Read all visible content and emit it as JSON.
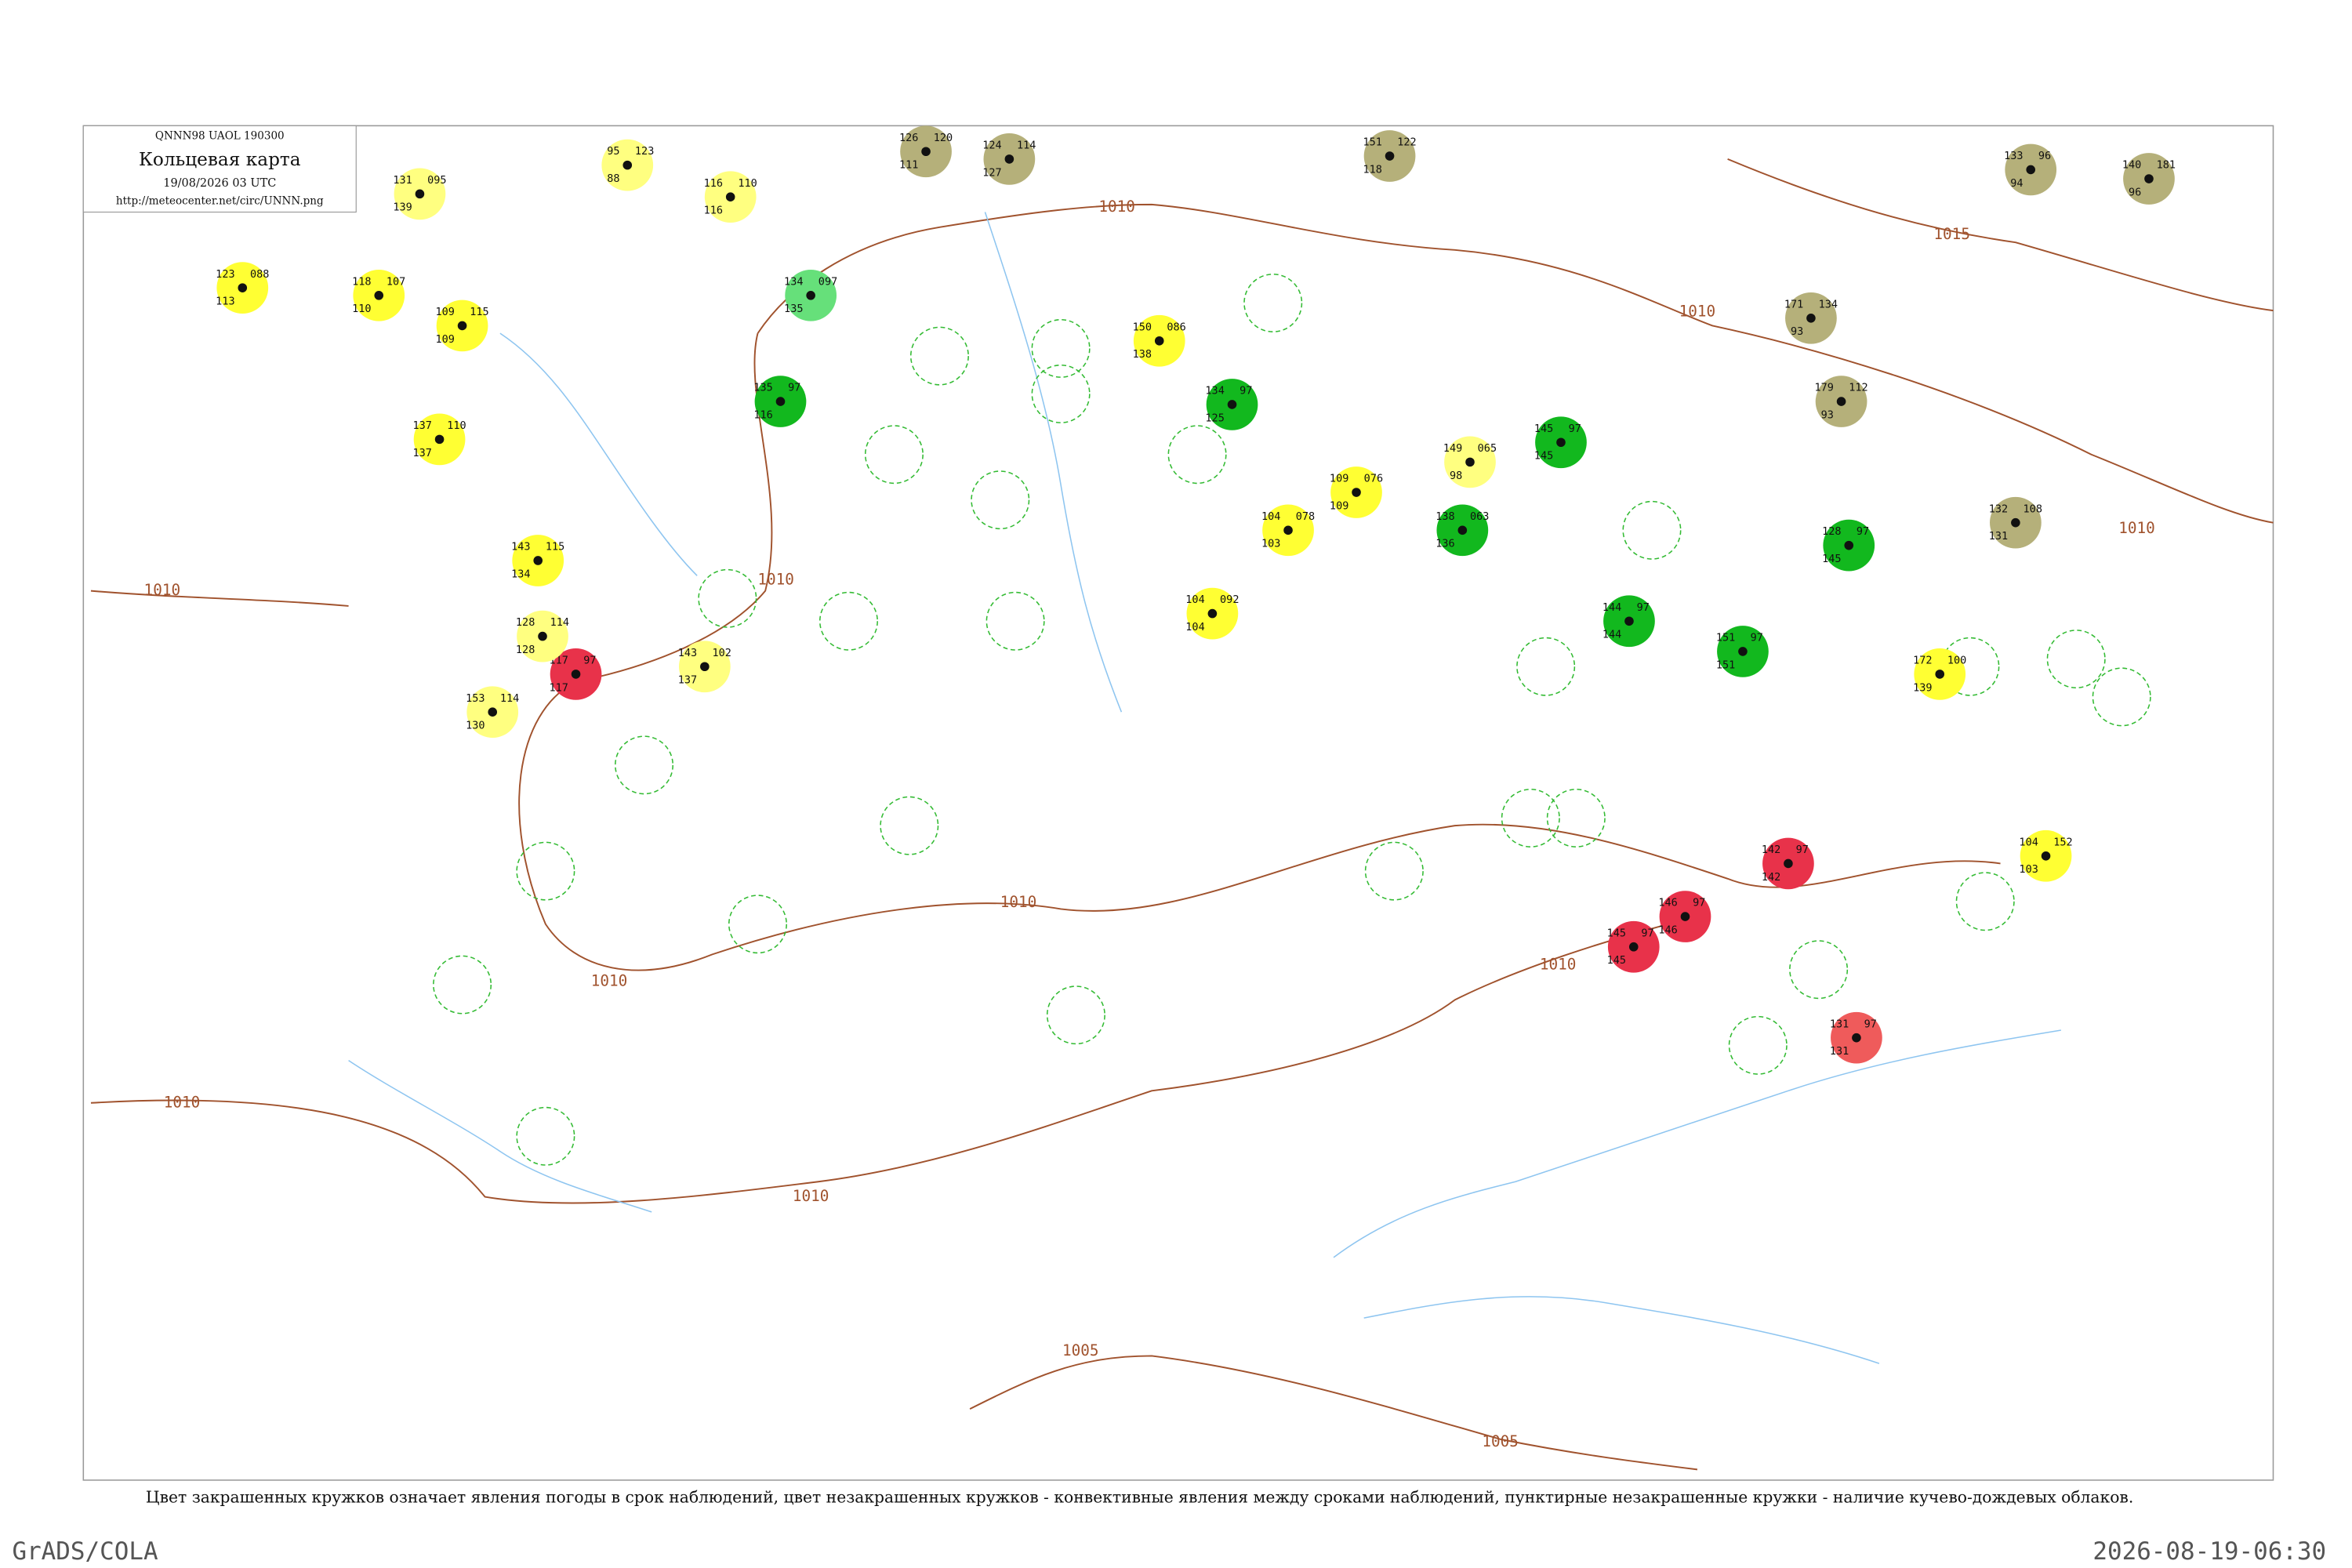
{
  "header": {
    "code": "QNNN98  UAOL  190300",
    "title": "Кольцевая карта",
    "time": "19/08/2026 03 UTC",
    "url": "http://meteocenter.net/circ/UNNN.png"
  },
  "isobar_labels": [
    "1010",
    "1010",
    "1010",
    "1010",
    "1010",
    "1010",
    "1010",
    "1010",
    "1010",
    "1010",
    "1015",
    "1005",
    "1005"
  ],
  "stations": [
    {
      "color": "#ffff80",
      "values": [
        "131",
        "095",
        "139"
      ]
    },
    {
      "color": "#ffff80",
      "values": [
        "95",
        "123",
        "88"
      ]
    },
    {
      "color": "#ffff80",
      "values": [
        "116",
        "110",
        "116"
      ]
    },
    {
      "color": "#b5b07a",
      "values": [
        "126",
        "120",
        "111"
      ]
    },
    {
      "color": "#b5b07a",
      "values": [
        "124",
        "114",
        "127"
      ]
    },
    {
      "color": "#b5b07a",
      "values": [
        "151",
        "122",
        "118"
      ]
    },
    {
      "color": "#b5b07a",
      "values": [
        "133",
        "96",
        "94"
      ]
    },
    {
      "color": "#b5b07a",
      "values": [
        "140",
        "181",
        "96"
      ]
    },
    {
      "color": "#66e07a",
      "values": [
        "134",
        "097",
        "135"
      ]
    },
    {
      "color": "#12b81e",
      "values": [
        "135",
        "97",
        "116"
      ]
    },
    {
      "color": "#12b81e",
      "values": [
        "134",
        "97",
        "125"
      ]
    },
    {
      "color": "#ffff33",
      "values": [
        "150",
        "086",
        "138"
      ]
    },
    {
      "color": "#e8324a",
      "values": [
        "117",
        "97",
        "117"
      ]
    },
    {
      "color": "#ffff80",
      "values": [
        "128",
        "114",
        "128"
      ]
    },
    {
      "color": "#12b81e",
      "values": [
        "145",
        "97",
        "145"
      ]
    },
    {
      "color": "#12b81e",
      "values": [
        "138",
        "063",
        "136"
      ]
    },
    {
      "color": "#12b81e",
      "values": [
        "144",
        "97",
        "144"
      ]
    },
    {
      "color": "#12b81e",
      "values": [
        "151",
        "97",
        "151"
      ]
    },
    {
      "color": "#12b81e",
      "values": [
        "128",
        "97",
        "145"
      ]
    },
    {
      "color": "#e8324a",
      "values": [
        "142",
        "97",
        "142"
      ]
    },
    {
      "color": "#e8324a",
      "values": [
        "145",
        "97",
        "145"
      ]
    },
    {
      "color": "#e8324a",
      "values": [
        "146",
        "97",
        "146"
      ]
    },
    {
      "color": "#ef5b5b",
      "values": [
        "131",
        "97",
        "131"
      ]
    },
    {
      "color": "#ffff33",
      "values": [
        "104",
        "152",
        "103"
      ]
    },
    {
      "color": "#ffff33",
      "values": [
        "104",
        "092",
        "104"
      ]
    },
    {
      "color": "#ffff33",
      "values": [
        "104",
        "078",
        "103"
      ]
    },
    {
      "color": "#ffff33",
      "values": [
        "109",
        "076",
        "109"
      ]
    },
    {
      "color": "#ffff80",
      "values": [
        "149",
        "065",
        "98"
      ]
    },
    {
      "color": "#ffff33",
      "values": [
        "172",
        "100",
        "139"
      ]
    },
    {
      "color": "#ffff33",
      "values": [
        "109",
        "115",
        "109"
      ]
    },
    {
      "color": "#ffff33",
      "values": [
        "118",
        "107",
        "110"
      ]
    },
    {
      "color": "#ffff33",
      "values": [
        "123",
        "088",
        "113"
      ]
    },
    {
      "color": "#ffff33",
      "values": [
        "137",
        "110",
        "137"
      ]
    },
    {
      "color": "#ffff33",
      "values": [
        "143",
        "115",
        "134"
      ]
    },
    {
      "color": "#ffff80",
      "values": [
        "153",
        "114",
        "130"
      ]
    },
    {
      "color": "#ffff80",
      "values": [
        "143",
        "102",
        "137"
      ]
    },
    {
      "color": "#b5b07a",
      "values": [
        "132",
        "108",
        "131"
      ]
    },
    {
      "color": "#b5b07a",
      "values": [
        "171",
        "134",
        "93"
      ]
    },
    {
      "color": "#b5b07a",
      "values": [
        "179",
        "112",
        "93"
      ]
    }
  ],
  "caption": "Цвет закрашенных кружков означает явления погоды в срок наблюдений, цвет незакрашенных кружков - конвективные явления между сроками наблюдений, пунктирные незакрашенные кружки - наличие кучево-дождевых облаков.",
  "footer": {
    "left": "GrADS/COLA",
    "right": "2026-08-19-06:30"
  }
}
